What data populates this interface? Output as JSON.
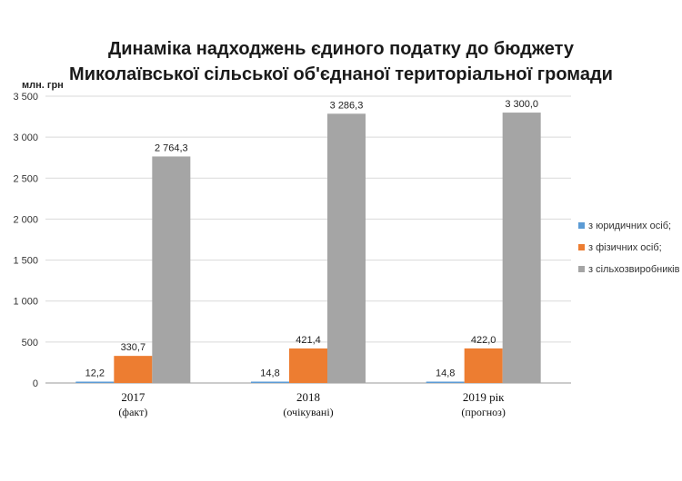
{
  "chart_data": {
    "type": "bar",
    "title_lines": [
      "Динаміка надходжень єдиного податку до бюджету",
      "Миколаївської сільської об'єднаної територіальної громади"
    ],
    "ylabel": "млн. грн",
    "ylim": [
      0,
      3500
    ],
    "yticks": [
      0,
      500,
      1000,
      1500,
      2000,
      2500,
      3000,
      3500
    ],
    "ytick_labels": [
      "0",
      "500",
      "1 000",
      "1 500",
      "2 000",
      "2 500",
      "3 000",
      "3 500"
    ],
    "grid": true,
    "legend_position": "right",
    "categories": [
      {
        "label": "2017",
        "sub": "(факт)"
      },
      {
        "label": "2018",
        "sub": "(очікувані)"
      },
      {
        "label": "2019 рік",
        "sub": "(прогноз)"
      }
    ],
    "series": [
      {
        "name": "з юридичних осіб;",
        "color": "#5b9bd5",
        "values": [
          12.2,
          14.8,
          14.8
        ],
        "labels": [
          "12,2",
          "14,8",
          "14,8"
        ]
      },
      {
        "name": "з фізичних осіб;",
        "color": "#ed7d31",
        "values": [
          330.7,
          421.4,
          422.0
        ],
        "labels": [
          "330,7",
          "421,4",
          "422,0"
        ]
      },
      {
        "name": "з сільхозвиробників",
        "color": "#a5a5a5",
        "values": [
          2764.3,
          3286.3,
          3300.0
        ],
        "labels": [
          "2 764,3",
          "3 286,3",
          "3 300,0"
        ]
      }
    ]
  }
}
